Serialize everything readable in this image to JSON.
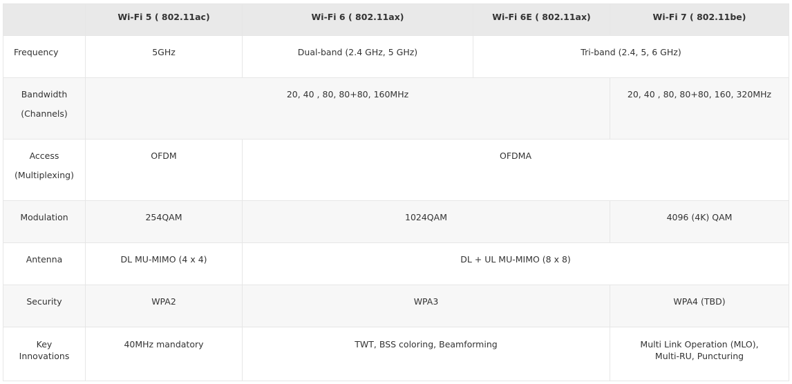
{
  "header": [
    "",
    "Wi-Fi 5 ( 802.11ac)",
    "Wi-Fi 6 ( 802.11ax)",
    "Wi-Fi 6E ( 802.11ax)",
    "Wi-Fi 7 ( 802.11be)"
  ],
  "rows": {
    "frequency": {
      "label": "Frequency",
      "cells": [
        "5GHz",
        "Dual-band (2.4 GHz, 5 GHz)",
        "Tri-band (2.4, 5, 6 GHz)"
      ]
    },
    "bandwidth": {
      "label_1": "Bandwidth",
      "label_2": "(Channels)",
      "cells": [
        "20, 40 , 80, 80+80, 160MHz",
        "20, 40 , 80, 80+80, 160, 320MHz"
      ]
    },
    "access": {
      "label_1": "Access",
      "label_2": "(Multiplexing)",
      "cells": [
        "OFDM",
        "OFDMA"
      ]
    },
    "modulation": {
      "label": "Modulation",
      "cells": [
        "254QAM",
        "1024QAM",
        "4096 (4K) QAM"
      ]
    },
    "antenna": {
      "label": "Antenna",
      "cells": [
        "DL MU-MIMO (4 x 4)",
        "DL + UL MU-MIMO (8 x 8)"
      ]
    },
    "security": {
      "label": "Security",
      "cells": [
        "WPA2",
        "WPA3",
        "WPA4 (TBD)"
      ]
    },
    "innovations": {
      "label_1": "Key",
      "label_2": "Innovations",
      "cells": [
        "40MHz mandatory",
        "TWT, BSS coloring, Beamforming",
        "Multi Link Operation (MLO),",
        "Multi-RU, Puncturing"
      ]
    }
  }
}
